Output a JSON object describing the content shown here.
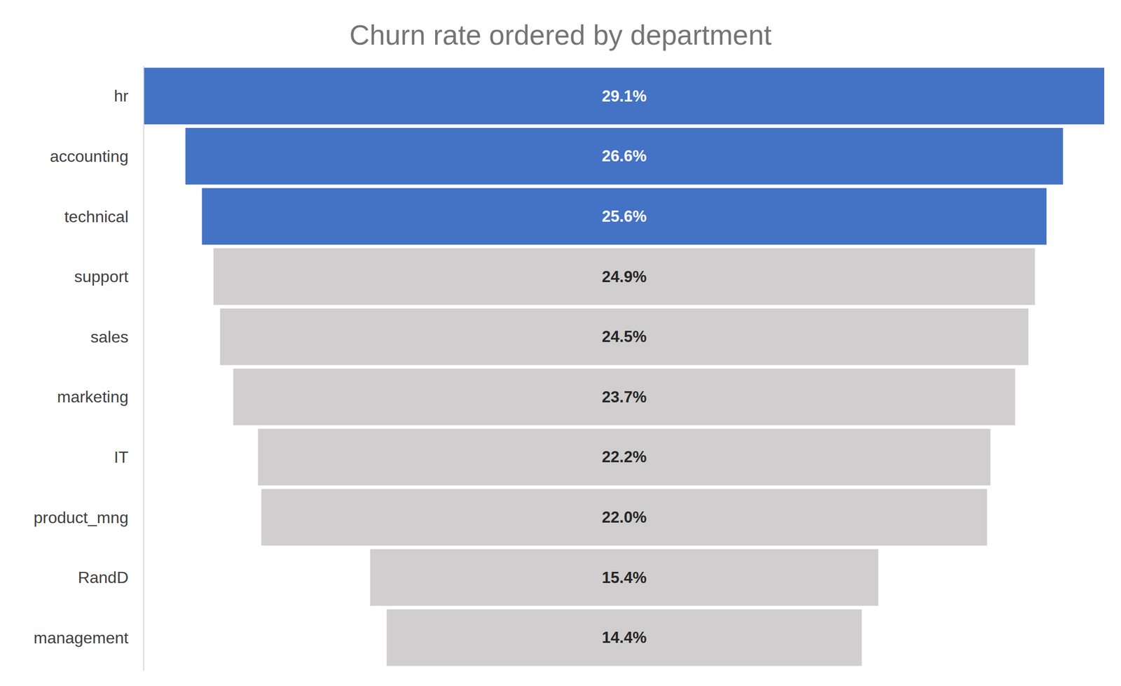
{
  "chart_data": {
    "type": "funnel",
    "title": "Churn rate ordered by department",
    "categories": [
      "hr",
      "accounting",
      "technical",
      "support",
      "sales",
      "marketing",
      "IT",
      "product_mng",
      "RandD",
      "management"
    ],
    "values": [
      29.1,
      26.6,
      25.6,
      24.9,
      24.5,
      23.7,
      22.2,
      22.0,
      15.4,
      14.4
    ],
    "value_labels": [
      "29.1%",
      "26.6%",
      "25.6%",
      "24.9%",
      "24.5%",
      "23.7%",
      "22.2%",
      "22.0%",
      "15.4%",
      "14.4%"
    ],
    "colors": [
      "#4472c4",
      "#4472c4",
      "#4472c4",
      "#d0cece",
      "#d0cece",
      "#d0cece",
      "#d0cece",
      "#d0cece",
      "#d0cece",
      "#d0cece"
    ],
    "data_labels": true
  }
}
